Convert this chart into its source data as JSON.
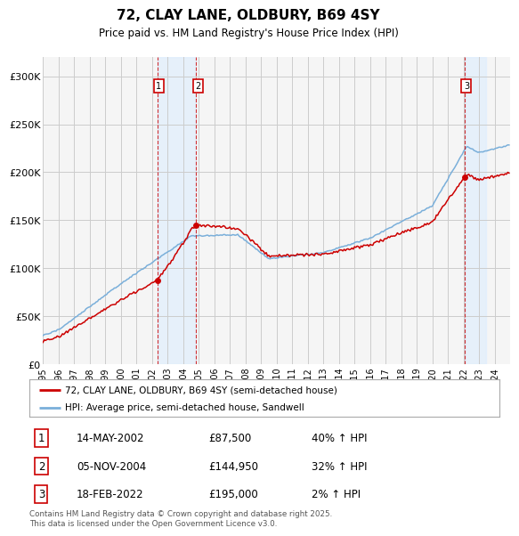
{
  "title": "72, CLAY LANE, OLDBURY, B69 4SY",
  "subtitle": "Price paid vs. HM Land Registry's House Price Index (HPI)",
  "ylim": [
    0,
    320000
  ],
  "yticks": [
    0,
    50000,
    100000,
    150000,
    200000,
    250000,
    300000
  ],
  "ytick_labels": [
    "£0",
    "£50K",
    "£100K",
    "£150K",
    "£200K",
    "£250K",
    "£300K"
  ],
  "line1_color": "#cc0000",
  "line2_color": "#7aafda",
  "sale_color": "#cc0000",
  "purchase_prices": [
    87500,
    144950,
    195000
  ],
  "purchase_labels": [
    "1",
    "2",
    "3"
  ],
  "purchase_hpi_pct": [
    "40% ↑ HPI",
    "32% ↑ HPI",
    "2% ↑ HPI"
  ],
  "purchase_date_labels": [
    "14-MAY-2002",
    "05-NOV-2004",
    "18-FEB-2022"
  ],
  "legend_line1": "72, CLAY LANE, OLDBURY, B69 4SY (semi-detached house)",
  "legend_line2": "HPI: Average price, semi-detached house, Sandwell",
  "footnote": "Contains HM Land Registry data © Crown copyright and database right 2025.\nThis data is licensed under the Open Government Licence v3.0.",
  "background_color": "#ffffff",
  "plot_bg_color": "#f5f5f5",
  "grid_color": "#cccccc",
  "shade_color": "#ddeeff"
}
